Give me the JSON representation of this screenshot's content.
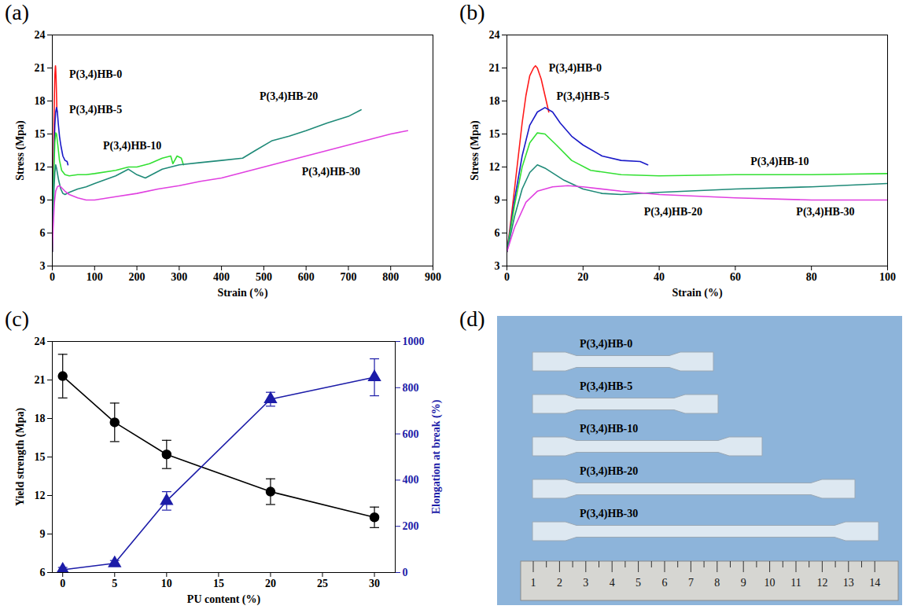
{
  "chart_data": [
    {
      "panel": "(a)",
      "type": "line",
      "xlabel": "Strain (%)",
      "ylabel": "Stress (Mpa)",
      "xlim": [
        0,
        900
      ],
      "xticks": [
        0,
        100,
        200,
        300,
        400,
        500,
        600,
        700,
        800,
        900
      ],
      "ylim": [
        3,
        24
      ],
      "yticks": [
        3,
        6,
        9,
        12,
        15,
        18,
        21,
        24
      ],
      "series": [
        {
          "name": "P(3,4)HB-0",
          "color": "#ff1a1a",
          "x": [
            0,
            1,
            2,
            3,
            4,
            5,
            6,
            7,
            7.5,
            8,
            9,
            10,
            11
          ],
          "values": [
            4.3,
            7,
            10,
            13,
            16,
            18.5,
            20.3,
            21,
            21.2,
            21,
            20,
            18.5,
            17
          ]
        },
        {
          "name": "P(3,4)HB-5",
          "color": "#1a1ac8",
          "x": [
            0,
            2,
            4,
            6,
            8,
            10,
            12,
            14,
            17,
            20,
            25,
            30,
            35,
            37
          ],
          "values": [
            4.3,
            9,
            13,
            15.8,
            17,
            17.4,
            17,
            16,
            14.8,
            14,
            13,
            12.6,
            12.5,
            12.2
          ]
        },
        {
          "name": "P(3,4)HB-10",
          "color": "#33e033",
          "x": [
            0,
            2,
            4,
            6,
            8,
            10,
            13,
            17,
            22,
            30,
            40,
            60,
            80,
            100,
            150,
            180,
            200,
            230,
            260,
            280,
            285,
            295,
            305,
            310
          ],
          "values": [
            4.3,
            8.5,
            12,
            14.2,
            15.1,
            15,
            14,
            12.6,
            11.7,
            11.3,
            11.2,
            11.3,
            11.3,
            11.4,
            11.7,
            12,
            12,
            12.3,
            12.8,
            13,
            12.3,
            13,
            12.8,
            12.2
          ]
        },
        {
          "name": "P(3,4)HB-20",
          "color": "#1f8a78",
          "x": [
            0,
            2,
            4,
            6,
            8,
            10,
            15,
            20,
            25,
            30,
            40,
            60,
            80,
            100,
            150,
            180,
            200,
            220,
            260,
            300,
            350,
            400,
            450,
            480,
            520,
            560,
            600,
            650,
            700,
            730
          ],
          "values": [
            4.3,
            7.5,
            10,
            11.5,
            12.2,
            11.9,
            10.8,
            10,
            9.6,
            9.5,
            9.7,
            10,
            10.2,
            10.5,
            11.2,
            11.8,
            11.3,
            11,
            11.8,
            12.2,
            12.4,
            12.6,
            12.8,
            13.5,
            14.4,
            14.8,
            15.3,
            16,
            16.6,
            17.2
          ]
        },
        {
          "name": "P(3,4)HB-30",
          "color": "#e040e0",
          "x": [
            0,
            2,
            5,
            8,
            12,
            16,
            20,
            30,
            40,
            60,
            80,
            100,
            150,
            200,
            250,
            300,
            350,
            400,
            450,
            500,
            550,
            600,
            650,
            700,
            750,
            800,
            840
          ],
          "values": [
            4.3,
            6.5,
            8.8,
            9.8,
            10.2,
            10.3,
            10.2,
            9.8,
            9.5,
            9.2,
            9,
            9,
            9.3,
            9.6,
            10,
            10.3,
            10.7,
            11,
            11.5,
            12,
            12.5,
            13,
            13.5,
            14,
            14.5,
            15,
            15.3
          ]
        }
      ],
      "annotations": [
        {
          "text": "P(3,4)HB-0",
          "x": 40,
          "y": 20.4
        },
        {
          "text": "P(3,4)HB-5",
          "x": 40,
          "y": 17.2
        },
        {
          "text": "P(3,4)HB-10",
          "x": 120,
          "y": 13.9
        },
        {
          "text": "P(3,4)HB-20",
          "x": 490,
          "y": 18.4
        },
        {
          "text": "P(3,4)HB-30",
          "x": 590,
          "y": 11.6
        }
      ]
    },
    {
      "panel": "(b)",
      "type": "line",
      "xlabel": "Strain (%)",
      "ylabel": "Stress (Mpa)",
      "xlim": [
        0,
        100
      ],
      "xticks": [
        0,
        20,
        40,
        60,
        80,
        100
      ],
      "ylim": [
        3,
        24
      ],
      "yticks": [
        3,
        6,
        9,
        12,
        15,
        18,
        21,
        24
      ],
      "series": [
        {
          "name": "P(3,4)HB-0",
          "color": "#ff1a1a",
          "x": [
            0,
            1,
            2,
            3,
            4,
            5,
            6,
            7,
            7.5,
            8,
            9,
            10,
            11
          ],
          "values": [
            4.3,
            7,
            10,
            13,
            16,
            18.5,
            20.3,
            21,
            21.2,
            21,
            20,
            18.5,
            17
          ]
        },
        {
          "name": "P(3,4)HB-5",
          "color": "#1a1ac8",
          "x": [
            0,
            2,
            4,
            6,
            8,
            10,
            12,
            14,
            17,
            20,
            25,
            30,
            35,
            37
          ],
          "values": [
            4.3,
            9,
            13,
            15.8,
            17,
            17.4,
            17,
            16,
            14.8,
            14,
            13,
            12.6,
            12.5,
            12.2
          ]
        },
        {
          "name": "P(3,4)HB-10",
          "color": "#33e033",
          "x": [
            0,
            2,
            4,
            6,
            8,
            10,
            13,
            17,
            22,
            30,
            40,
            60,
            80,
            100
          ],
          "values": [
            4.3,
            8.5,
            12,
            14.2,
            15.1,
            15,
            14,
            12.6,
            11.7,
            11.3,
            11.2,
            11.3,
            11.3,
            11.4
          ]
        },
        {
          "name": "P(3,4)HB-20",
          "color": "#1f8a78",
          "x": [
            0,
            2,
            4,
            6,
            8,
            10,
            15,
            20,
            25,
            30,
            40,
            60,
            80,
            100
          ],
          "values": [
            4.3,
            7.5,
            10,
            11.5,
            12.2,
            11.9,
            10.8,
            10,
            9.6,
            9.5,
            9.7,
            10,
            10.2,
            10.5
          ]
        },
        {
          "name": "P(3,4)HB-30",
          "color": "#e040e0",
          "x": [
            0,
            2,
            5,
            8,
            12,
            16,
            20,
            30,
            40,
            60,
            80,
            100
          ],
          "values": [
            4.3,
            6.5,
            8.8,
            9.8,
            10.2,
            10.3,
            10.2,
            9.8,
            9.5,
            9.2,
            9,
            9
          ]
        }
      ],
      "annotations": [
        {
          "text": "P(3,4)HB-0",
          "x": 11,
          "y": 21
        },
        {
          "text": "P(3,4)HB-5",
          "x": 13,
          "y": 18.4
        },
        {
          "text": "P(3,4)HB-10",
          "x": 64,
          "y": 12.5
        },
        {
          "text": "P(3,4)HB-20",
          "x": 36,
          "y": 7.9
        },
        {
          "text": "P(3,4)HB-30",
          "x": 76,
          "y": 7.9
        }
      ]
    },
    {
      "panel": "(c)",
      "type": "line",
      "xlabel": "PU content (%)",
      "ylabel": "Yield strength (Mpa)",
      "y2label": "Elongation at break (%)",
      "x": [
        0,
        5,
        10,
        20,
        30
      ],
      "xlim": [
        -1,
        32
      ],
      "xticks": [
        0,
        5,
        10,
        15,
        20,
        25,
        30
      ],
      "ylim": [
        6,
        24
      ],
      "yticks": [
        6,
        9,
        12,
        15,
        18,
        21,
        24
      ],
      "y2lim": [
        0,
        1000
      ],
      "y2ticks": [
        0,
        200,
        400,
        600,
        800,
        1000
      ],
      "series": [
        {
          "color": "#000000",
          "marker": "circle",
          "values": [
            21.3,
            17.7,
            15.2,
            12.3,
            10.3
          ],
          "errors": [
            1.7,
            1.5,
            1.1,
            1.0,
            0.8
          ]
        },
        {
          "color": "#1c1ca8",
          "marker": "triangle",
          "axis": "y2",
          "values": [
            12,
            40,
            310,
            750,
            845
          ],
          "errors": [
            10,
            12,
            40,
            30,
            80
          ]
        }
      ]
    }
  ],
  "image": {
    "panel": "(d)",
    "specimens": [
      "P(3,4)HB-0",
      "P(3,4)HB-5",
      "P(3,4)HB-10",
      "P(3,4)HB-20",
      "P(3,4)HB-30"
    ],
    "ruler_labels": [
      1,
      2,
      3,
      4,
      5,
      6,
      7,
      8,
      9,
      10,
      11,
      12,
      13,
      14
    ]
  }
}
